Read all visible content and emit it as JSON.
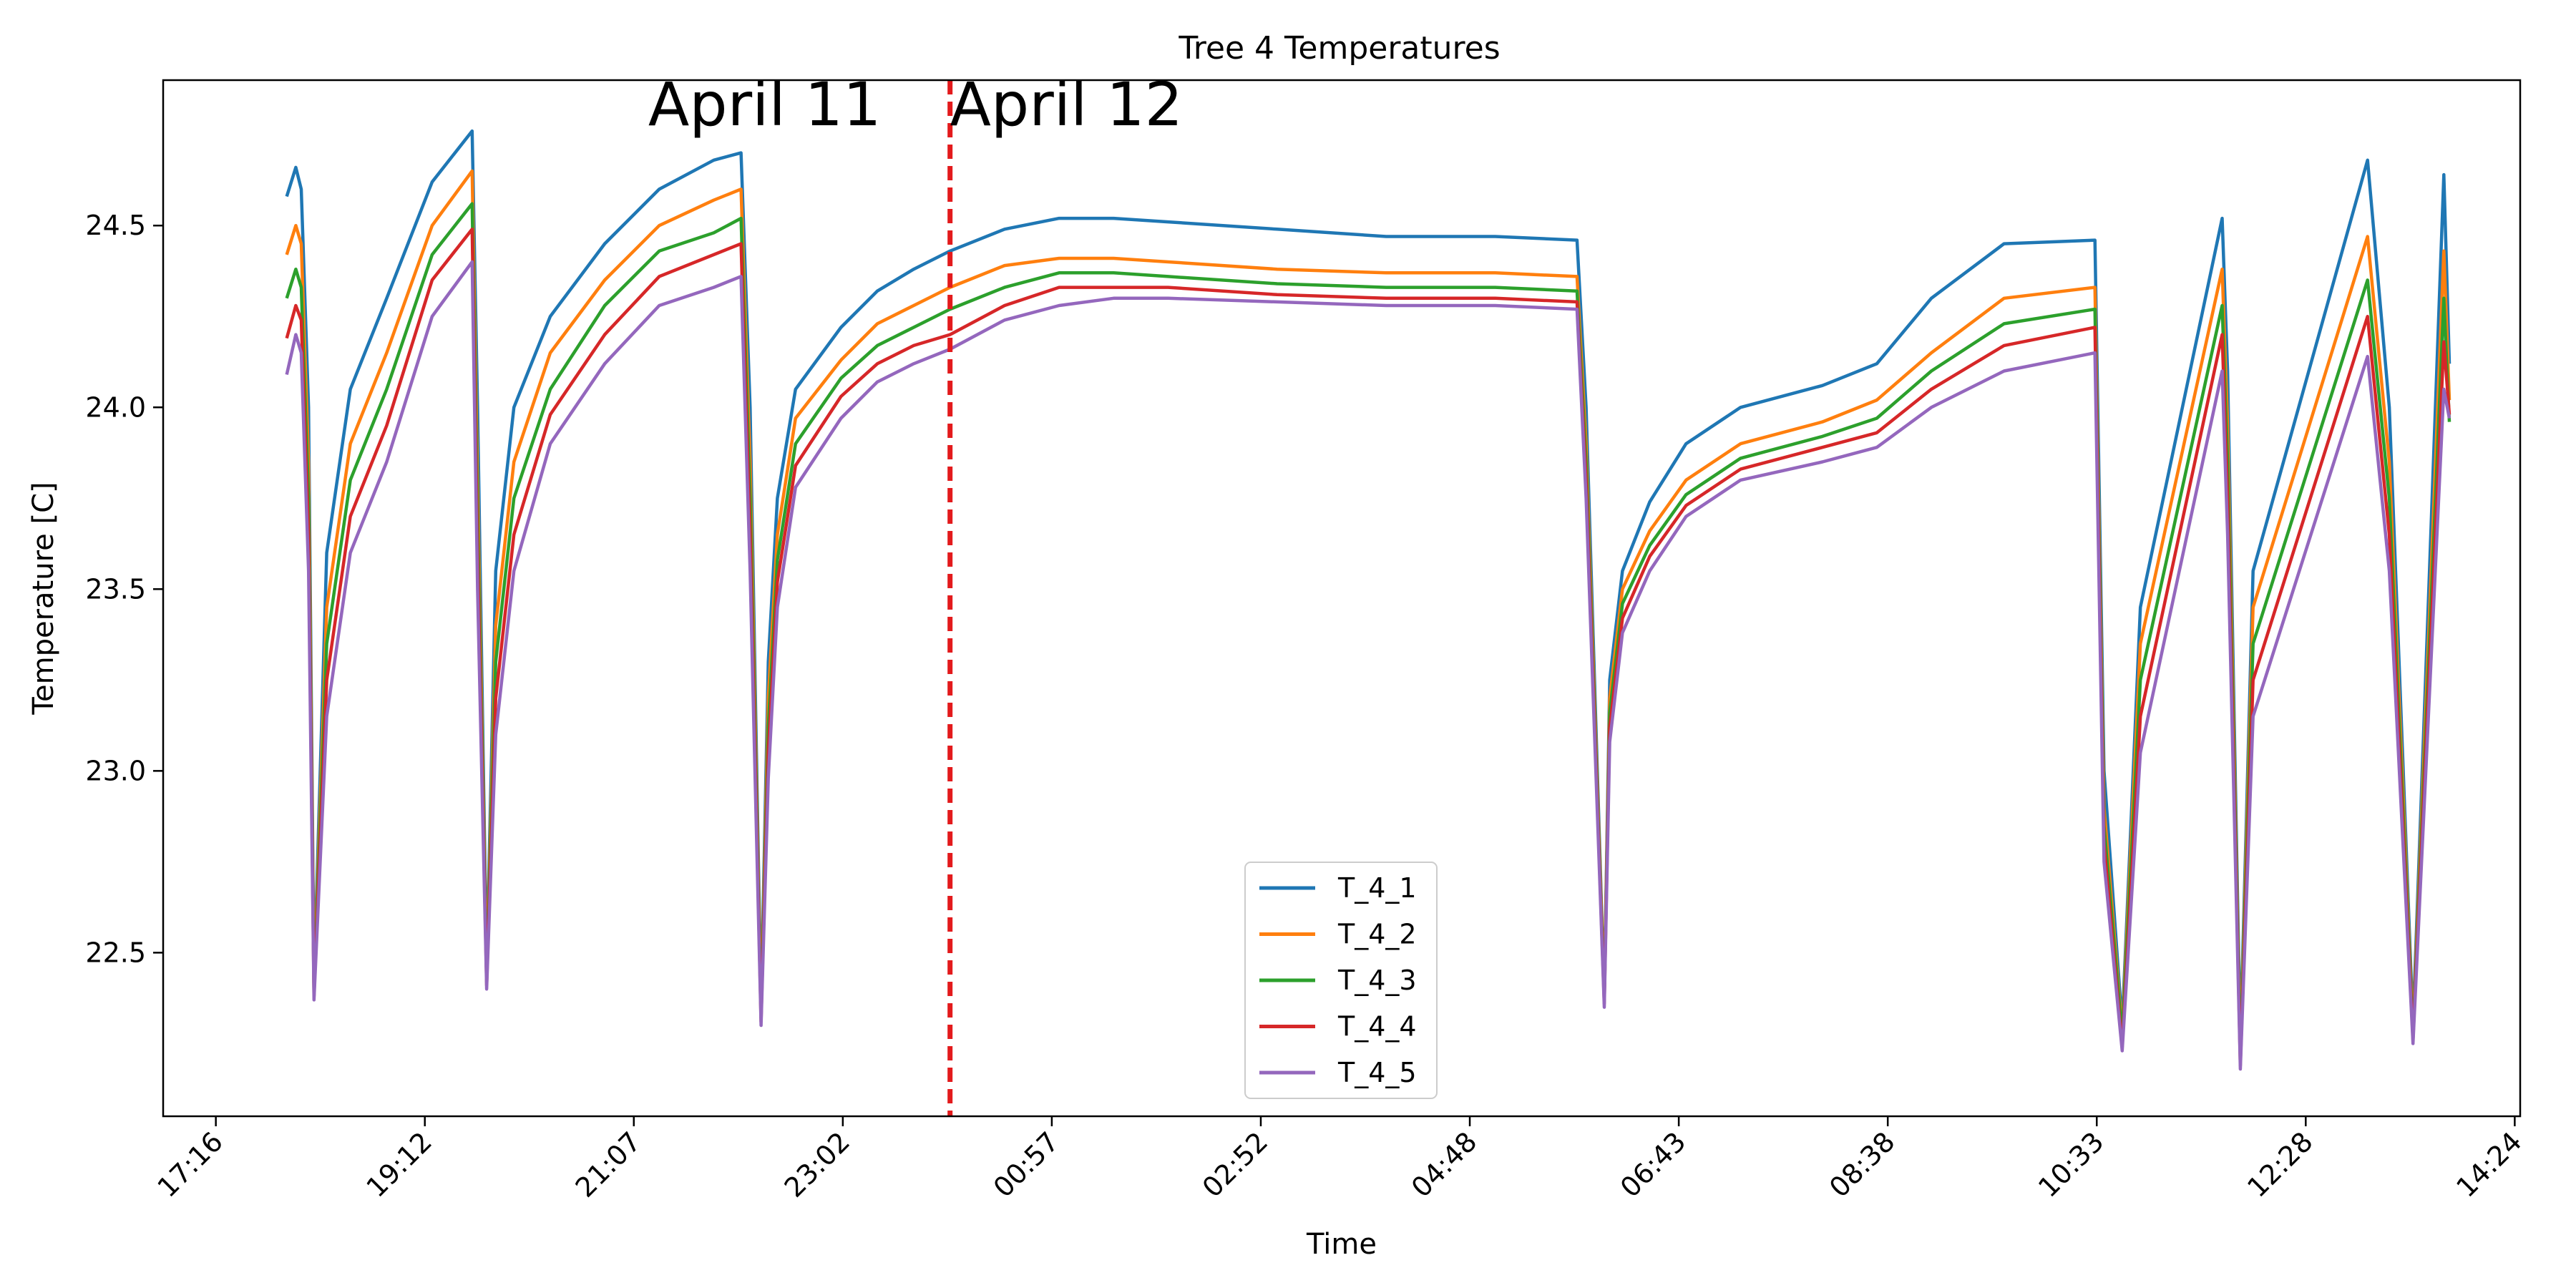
{
  "chart_data": {
    "type": "line",
    "title": "Tree 4 Temperatures",
    "xlabel": "Time",
    "ylabel": "Temperature [C]",
    "xlim": [
      "April 11 16:47",
      "April 12 14:24"
    ],
    "ylim": [
      22.05,
      24.9
    ],
    "x_ticks": [
      "17:16",
      "19:12",
      "21:07",
      "23:02",
      "00:57",
      "02:52",
      "04:48",
      "06:43",
      "08:38",
      "10:33",
      "12:28",
      "14:24"
    ],
    "y_ticks": [
      "22.5",
      "23.0",
      "23.5",
      "24.0",
      "24.5"
    ],
    "annotations": [
      {
        "text": "April 11",
        "x": "April 11 22:18"
      },
      {
        "text": "April 12",
        "x": "April 12 01:04"
      }
    ],
    "vline": {
      "x": "April 12 00:00",
      "style": "dashed",
      "color": "#e31a1c"
    },
    "legend_position": "lower center",
    "grid": false,
    "keypoint_times": [
      "17:55",
      "18:00",
      "18:03",
      "18:07",
      "18:10",
      "18:17",
      "18:30",
      "18:50",
      "19:15",
      "19:37",
      "19:40",
      "19:45",
      "19:50",
      "20:00",
      "20:20",
      "20:50",
      "21:20",
      "21:50",
      "22:05",
      "22:10",
      "22:16",
      "22:20",
      "22:25",
      "22:35",
      "23:00",
      "23:20",
      "23:40",
      "00:00",
      "00:30",
      "01:00",
      "01:30",
      "02:00",
      "03:00",
      "04:00",
      "05:00",
      "05:45",
      "05:50",
      "06:00",
      "06:03",
      "06:10",
      "06:25",
      "06:45",
      "07:15",
      "08:00",
      "08:30",
      "09:00",
      "09:40",
      "10:30",
      "10:35",
      "10:45",
      "10:55",
      "11:40",
      "11:43",
      "11:50",
      "11:57",
      "13:00",
      "13:12",
      "13:25",
      "13:42",
      "13:45"
    ],
    "series": [
      {
        "name": "T_4_1",
        "color": "#1f77b4",
        "values": [
          24.58,
          24.66,
          24.6,
          24.0,
          22.42,
          23.6,
          24.05,
          24.3,
          24.62,
          24.76,
          24.0,
          22.45,
          23.55,
          24.0,
          24.25,
          24.45,
          24.6,
          24.68,
          24.7,
          24.0,
          22.35,
          23.3,
          23.75,
          24.05,
          24.22,
          24.32,
          24.38,
          24.43,
          24.49,
          24.52,
          24.52,
          24.51,
          24.49,
          24.47,
          24.47,
          24.46,
          24.0,
          22.38,
          23.25,
          23.55,
          23.74,
          23.9,
          24.0,
          24.06,
          24.12,
          24.3,
          24.45,
          24.46,
          23.0,
          22.3,
          23.45,
          24.52,
          24.1,
          22.25,
          23.55,
          24.68,
          24.0,
          22.3,
          24.64,
          24.12
        ]
      },
      {
        "name": "T_4_2",
        "color": "#ff7f0e",
        "values": [
          24.42,
          24.5,
          24.45,
          23.85,
          22.4,
          23.45,
          23.9,
          24.15,
          24.5,
          24.65,
          23.8,
          22.43,
          23.4,
          23.85,
          24.15,
          24.35,
          24.5,
          24.57,
          24.6,
          23.85,
          22.33,
          23.2,
          23.65,
          23.97,
          24.13,
          24.23,
          24.28,
          24.33,
          24.39,
          24.41,
          24.41,
          24.4,
          24.38,
          24.37,
          24.37,
          24.36,
          23.9,
          22.38,
          23.2,
          23.5,
          23.66,
          23.8,
          23.9,
          23.96,
          24.02,
          24.15,
          24.3,
          24.33,
          22.9,
          22.28,
          23.35,
          24.38,
          23.95,
          22.22,
          23.45,
          24.47,
          23.85,
          22.28,
          24.43,
          24.02
        ]
      },
      {
        "name": "T_4_3",
        "color": "#2ca02c",
        "values": [
          24.3,
          24.38,
          24.33,
          23.75,
          22.39,
          23.35,
          23.8,
          24.05,
          24.42,
          24.56,
          23.7,
          22.42,
          23.3,
          23.75,
          24.05,
          24.28,
          24.43,
          24.48,
          24.52,
          23.75,
          22.32,
          23.12,
          23.58,
          23.9,
          24.08,
          24.17,
          24.22,
          24.27,
          24.33,
          24.37,
          24.37,
          24.36,
          24.34,
          24.33,
          24.33,
          24.32,
          23.85,
          22.37,
          23.16,
          23.46,
          23.62,
          23.76,
          23.86,
          23.92,
          23.97,
          24.1,
          24.23,
          24.27,
          22.85,
          22.27,
          23.25,
          24.28,
          23.85,
          22.21,
          23.35,
          24.35,
          23.75,
          22.27,
          24.3,
          23.96
        ]
      },
      {
        "name": "T_4_4",
        "color": "#d62728",
        "values": [
          24.19,
          24.28,
          24.24,
          23.65,
          22.38,
          23.25,
          23.7,
          23.95,
          24.35,
          24.49,
          23.6,
          22.41,
          23.2,
          23.65,
          23.98,
          24.2,
          24.36,
          24.42,
          24.45,
          23.65,
          22.31,
          23.05,
          23.52,
          23.84,
          24.03,
          24.12,
          24.17,
          24.2,
          24.28,
          24.33,
          24.33,
          24.33,
          24.31,
          24.3,
          24.3,
          24.29,
          23.8,
          22.36,
          23.12,
          23.42,
          23.59,
          23.73,
          23.83,
          23.89,
          23.93,
          24.05,
          24.17,
          24.22,
          22.8,
          22.24,
          23.15,
          24.2,
          23.75,
          22.19,
          23.25,
          24.25,
          23.65,
          22.26,
          24.18,
          23.98
        ]
      },
      {
        "name": "T_4_5",
        "color": "#9467bd",
        "values": [
          24.09,
          24.2,
          24.15,
          23.55,
          22.37,
          23.15,
          23.6,
          23.85,
          24.25,
          24.4,
          23.5,
          22.4,
          23.1,
          23.55,
          23.9,
          24.12,
          24.28,
          24.33,
          24.36,
          23.55,
          22.3,
          22.98,
          23.45,
          23.78,
          23.97,
          24.07,
          24.12,
          24.16,
          24.24,
          24.28,
          24.3,
          24.3,
          24.29,
          24.28,
          24.28,
          24.27,
          23.75,
          22.35,
          23.08,
          23.38,
          23.55,
          23.7,
          23.8,
          23.85,
          23.89,
          24.0,
          24.1,
          24.15,
          22.75,
          22.23,
          23.05,
          24.1,
          23.65,
          22.18,
          23.15,
          24.14,
          23.55,
          22.25,
          24.05,
          23.97
        ]
      }
    ]
  }
}
